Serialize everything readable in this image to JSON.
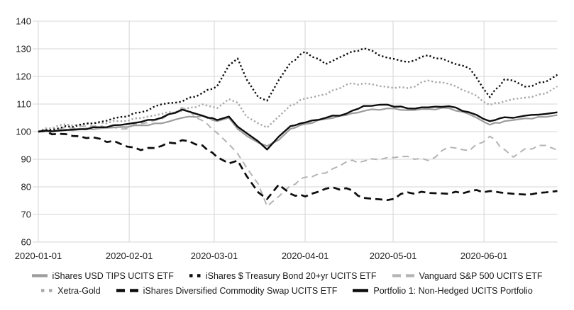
{
  "chart_data": {
    "type": "line",
    "title": "",
    "xlabel": "",
    "ylabel": "",
    "grid": true,
    "background_color": "#ffffff",
    "gridline_color": "#d4d4d4",
    "tick_label_color": "#222222",
    "ylim": [
      60,
      140
    ],
    "y_ticks": [
      60,
      70,
      80,
      90,
      100,
      110,
      120,
      130,
      140
    ],
    "x_axis_range": [
      "2020-01-01",
      "2020-06-26"
    ],
    "x_tick_labels": [
      "2020-01-01",
      "2020-02-01",
      "2020-03-01",
      "2020-04-01",
      "2020-05-01",
      "2020-06-01"
    ],
    "legend_position": "bottom",
    "baseline_value": 100,
    "x": [
      "2020-01-01",
      "2020-01-08",
      "2020-01-15",
      "2020-01-22",
      "2020-01-29",
      "2020-02-05",
      "2020-02-12",
      "2020-02-19",
      "2020-02-26",
      "2020-03-02",
      "2020-03-06",
      "2020-03-09",
      "2020-03-12",
      "2020-03-16",
      "2020-03-19",
      "2020-03-23",
      "2020-03-27",
      "2020-04-01",
      "2020-04-08",
      "2020-04-15",
      "2020-04-21",
      "2020-04-29",
      "2020-05-06",
      "2020-05-13",
      "2020-05-20",
      "2020-05-27",
      "2020-06-03",
      "2020-06-08",
      "2020-06-11",
      "2020-06-15",
      "2020-06-22",
      "2020-06-26"
    ],
    "series": [
      {
        "name": "iShares USD TIPS UCITS ETF",
        "slug": "tips",
        "style": "solid",
        "color": "#9c9c9c",
        "width": 2.2,
        "dash": "",
        "values": [
          100,
          100.3,
          100.8,
          101.2,
          101.7,
          102.3,
          103.0,
          105.0,
          105.7,
          103.8,
          105.0,
          101.0,
          98.5,
          96.0,
          94.8,
          97.0,
          101.0,
          102.8,
          104.6,
          106.0,
          107.5,
          108.4,
          107.8,
          108.2,
          108.5,
          106.3,
          102.5,
          103.8,
          104.2,
          104.8,
          105.3,
          106.0
        ]
      },
      {
        "name": "iShares $ Treasury Bond 20+yr UCITS ETF",
        "slug": "treasury-20yr",
        "style": "dotted",
        "color": "#0d0d0d",
        "width": 2.4,
        "dash": "2.3 3.1",
        "values": [
          100,
          101.2,
          102.4,
          103.5,
          105.3,
          107.0,
          109.9,
          110.9,
          114.0,
          116.5,
          124.0,
          126.5,
          119.0,
          112.5,
          111.2,
          118.7,
          125.0,
          129.0,
          124.5,
          128.0,
          130.2,
          126.8,
          125.2,
          127.7,
          125.4,
          123.0,
          112.5,
          119.0,
          118.5,
          116.3,
          118.0,
          120.6
        ]
      },
      {
        "name": "Vanguard S&P 500 UCITS ETF",
        "slug": "sp500",
        "style": "dashed",
        "color": "#b4b4b4",
        "width": 2.0,
        "dash": "9 6",
        "values": [
          100,
          100.8,
          101.8,
          102.2,
          100.9,
          102.9,
          104.5,
          108.7,
          104.0,
          99.5,
          95.5,
          92.0,
          87.0,
          81.0,
          73.0,
          76.5,
          80.5,
          83.5,
          85.0,
          89.0,
          89.3,
          90.6,
          91.0,
          89.5,
          94.4,
          93.1,
          98.3,
          93.5,
          90.8,
          93.8,
          95.0,
          93.3
        ]
      },
      {
        "name": "Xetra-Gold",
        "slug": "xetra-gold",
        "style": "dotted",
        "color": "#a8a8a8",
        "width": 2.4,
        "dash": "2.3 3.1",
        "values": [
          100,
          102.3,
          102.6,
          103.2,
          103.8,
          104.9,
          106.4,
          107.5,
          109.9,
          108.5,
          111.8,
          110.5,
          105.5,
          103.0,
          101.5,
          105.5,
          109.5,
          112.0,
          113.5,
          117.0,
          117.5,
          116.2,
          115.8,
          118.5,
          117.3,
          114.2,
          109.7,
          111.0,
          111.8,
          112.3,
          113.8,
          116.4
        ]
      },
      {
        "name": "iShares Diversified Commodity Swap UCITS ETF",
        "slug": "commodity-swap",
        "style": "dashed",
        "color": "#0d0d0d",
        "width": 2.7,
        "dash": "10 6",
        "values": [
          100,
          99.2,
          98.3,
          97.4,
          95.6,
          93.3,
          94.8,
          96.9,
          95.0,
          90.8,
          88.5,
          89.5,
          84.0,
          78.0,
          75.6,
          80.8,
          77.5,
          76.5,
          79.3,
          79.5,
          76.0,
          75.2,
          78.0,
          77.8,
          77.5,
          78.3,
          78.5,
          77.8,
          77.5,
          77.2,
          78.0,
          78.5
        ]
      },
      {
        "name": "Portfolio 1: Non-Hedged UCITS Portfolio",
        "slug": "portfolio-1",
        "style": "solid",
        "color": "#0d0d0d",
        "width": 2.4,
        "dash": "",
        "values": [
          100,
          100.4,
          100.9,
          101.6,
          102.4,
          103.5,
          105.0,
          108.0,
          105.8,
          104.2,
          105.5,
          101.8,
          99.5,
          96.5,
          93.5,
          98.2,
          102.0,
          103.3,
          105.0,
          106.5,
          109.3,
          109.8,
          108.4,
          108.8,
          109.2,
          107.0,
          103.8,
          105.2,
          105.0,
          105.8,
          106.4,
          107.0
        ]
      }
    ],
    "z_order": [
      2,
      3,
      0,
      4,
      1,
      5
    ]
  }
}
